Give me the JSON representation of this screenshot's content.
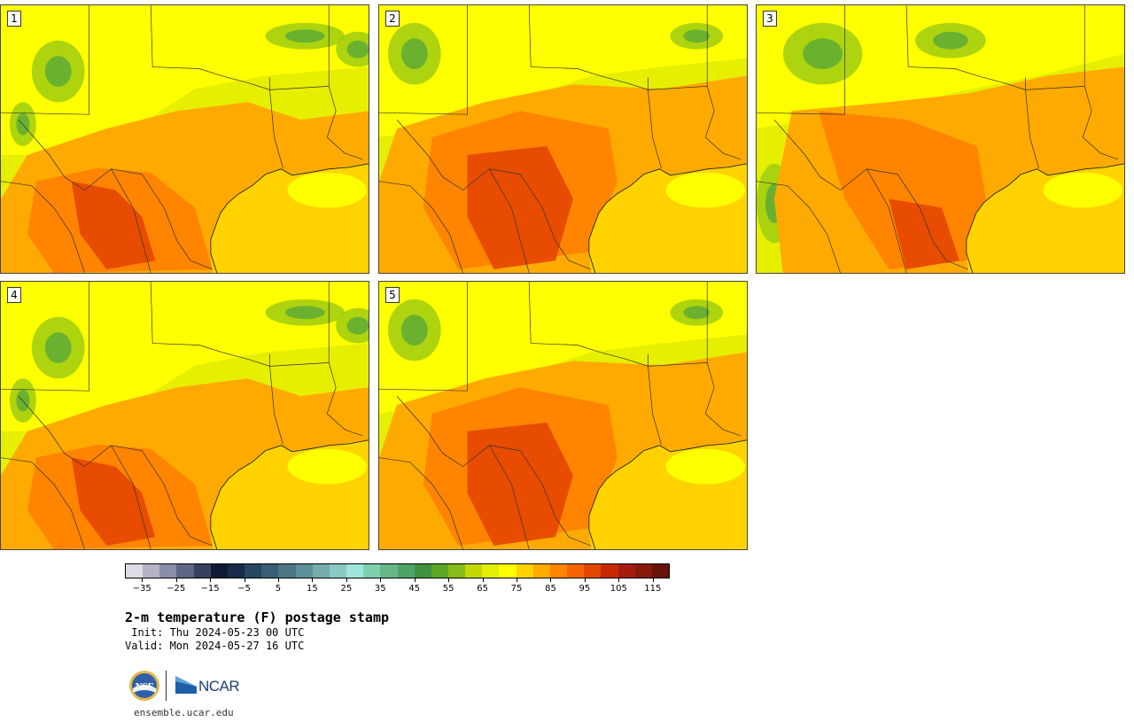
{
  "panels": [
    {
      "label": "1",
      "pattern": "hot-southwest"
    },
    {
      "label": "2",
      "pattern": "hot-central"
    },
    {
      "label": "3",
      "pattern": "warm-central"
    },
    {
      "label": "4",
      "pattern": "hot-southwest"
    },
    {
      "label": "5",
      "pattern": "hot-central"
    }
  ],
  "colorbar": {
    "colors": [
      "#dcdde3",
      "#b4b4c6",
      "#8a8fa7",
      "#5e6585",
      "#37405e",
      "#111a33",
      "#1a2a4a",
      "#274663",
      "#375e75",
      "#4d7683",
      "#5f8f98",
      "#76abad",
      "#8bc9c3",
      "#9fe5da",
      "#7ed1ae",
      "#66b888",
      "#4ea466",
      "#3f9040",
      "#5ea626",
      "#86bc1a",
      "#c1d900",
      "#e2ef00",
      "#ffff00",
      "#ffd200",
      "#ffaa00",
      "#ff8400",
      "#f46400",
      "#e44600",
      "#c82800",
      "#a51c0e",
      "#86180c",
      "#6a1208"
    ],
    "ticks": [
      "−35",
      "−25",
      "−15",
      "−5",
      "5",
      "15",
      "25",
      "35",
      "45",
      "55",
      "65",
      "75",
      "85",
      "95",
      "105",
      "115"
    ],
    "min": -40,
    "max": 120
  },
  "title": "2-m temperature (F) postage stamp",
  "init": " Init: Thu 2024-05-23 00 UTC",
  "valid": "Valid: Mon 2024-05-27 16 UTC",
  "logos": {
    "nsf": "NSF",
    "ncar": "NCAR"
  },
  "website": "ensemble.ucar.edu"
}
